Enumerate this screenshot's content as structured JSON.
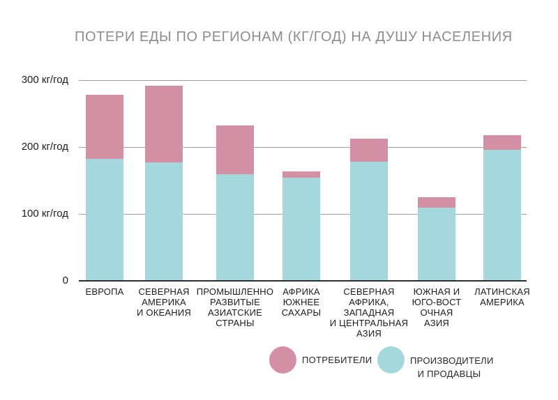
{
  "title": "ПОТЕРИ ЕДЫ ПО РЕГИОНАМ (КГ/ГОД) НА ДУШУ НАСЕЛЕНИЯ",
  "colors": {
    "consumers": "#d390a4",
    "producers": "#a4d8dd",
    "title_text": "#8d8d8d",
    "grid": "#a0a0a0",
    "axis": "#2d2d2d",
    "label_text": "#1c1c1c"
  },
  "chart_data": {
    "type": "bar",
    "stacked": true,
    "title": "ПОТЕРИ ЕДЫ ПО РЕГИОНАМ (КГ/ГОД) НА ДУШУ НАСЕЛЕНИЯ",
    "unit": "кг/год",
    "ylim": [
      0,
      300
    ],
    "grid": true,
    "legend_position": "bottom",
    "y_ticks": [
      {
        "value": 300,
        "label": "300 кг/год"
      },
      {
        "value": 200,
        "label": "200 кг/год"
      },
      {
        "value": 100,
        "label": "100 кг/год"
      },
      {
        "value": 0,
        "label": "0"
      }
    ],
    "categories": [
      [
        "ЕВРОПА"
      ],
      [
        "СЕВЕРНАЯ",
        "АМЕРИКА",
        "И ОКЕАНИЯ"
      ],
      [
        "ПРОМЫШЛЕННО",
        "РАЗВИТЫЕ",
        "АЗИАТСКИЕ",
        "СТРАНЫ"
      ],
      [
        "АФРИКА",
        "ЮЖНЕЕ",
        "САХАРЫ"
      ],
      [
        "СЕВЕРНАЯ",
        "АФРИКА,",
        "ЗАПАДНАЯ",
        "И ЦЕНТРАЛЬНАЯ",
        "АЗИЯ"
      ],
      [
        "ЮЖНАЯ И",
        "ЮГО-ВОСТ",
        "ОЧНАЯ",
        "АЗИЯ"
      ],
      [
        "ЛАТИНСКАЯ",
        "АМЕРИКА"
      ]
    ],
    "series": [
      {
        "name": "ПРОИЗВОДИТЕЛИ И ПРОДАВЦЫ",
        "color_key": "producers",
        "values": [
          182,
          177,
          159,
          154,
          178,
          109,
          196
        ]
      },
      {
        "name": "ПОТРЕБИТЕЛИ",
        "color_key": "consumers",
        "values": [
          96,
          115,
          73,
          10,
          34,
          16,
          22
        ]
      }
    ],
    "legend": [
      {
        "label": "ПОТРЕБИТЕЛИ",
        "color_key": "consumers"
      },
      {
        "label": "ПРОИЗВОДИТЕЛИ\nИ ПРОДАВЦЫ",
        "color_key": "producers"
      }
    ]
  }
}
